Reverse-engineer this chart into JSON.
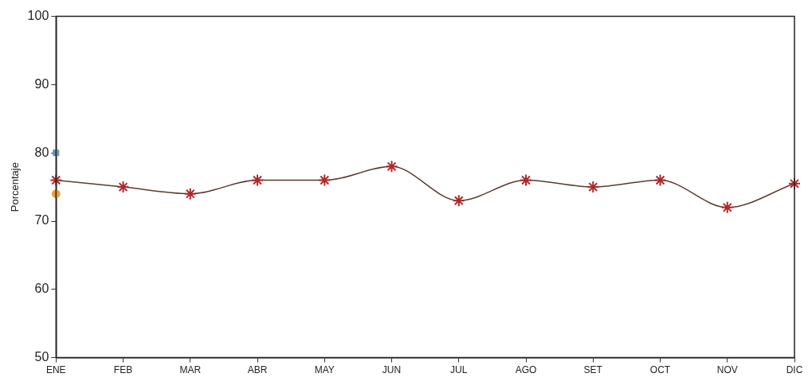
{
  "chart_data": {
    "type": "line",
    "ylabel": "Porcentaje",
    "categories": [
      "ENE",
      "FEB",
      "MAR",
      "ABR",
      "MAY",
      "JUN",
      "JUL",
      "AGO",
      "SET",
      "OCT",
      "NOV",
      "DIC"
    ],
    "series": [
      {
        "color": "#b0282a",
        "values": [
          76,
          75,
          74,
          76,
          76,
          78,
          73,
          76,
          75,
          76,
          72,
          75.5
        ],
        "marker": "cross"
      },
      {
        "type": "scatter",
        "color": "#6a8fb8",
        "marker": "square",
        "values": [
          80,
          null,
          null,
          null,
          null,
          null,
          null,
          null,
          null,
          null,
          null,
          null
        ]
      },
      {
        "type": "scatter",
        "color": "#e8a040",
        "marker": "circle",
        "values": [
          74,
          null,
          null,
          null,
          null,
          null,
          null,
          null,
          null,
          null,
          null,
          null
        ]
      }
    ],
    "ylim": [
      50,
      100
    ],
    "yticks": [
      50,
      60,
      70,
      80,
      90,
      100
    ],
    "grid": false,
    "legend": false
  }
}
